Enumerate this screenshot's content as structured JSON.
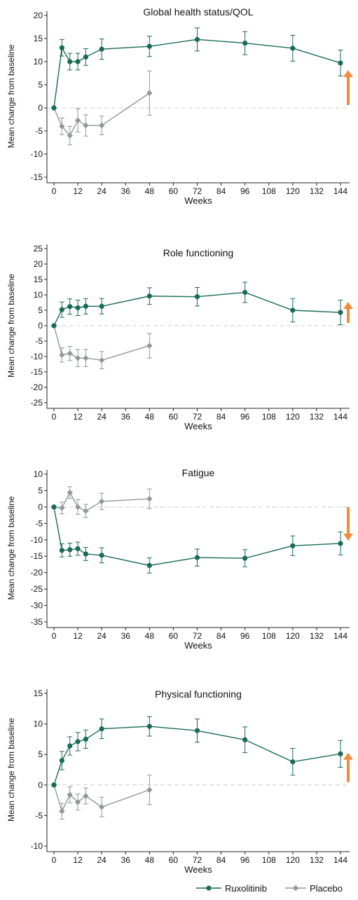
{
  "colors": {
    "ruxolitinib": "#1a6b55",
    "placebo": "#8e9a98",
    "arrow": "#f58a3a",
    "zero_line": "#cccccc",
    "axis": "#222222"
  },
  "legend": [
    {
      "label": "Ruxolitinib",
      "marker": "circle"
    },
    {
      "label": "Placebo",
      "marker": "diamond"
    }
  ],
  "chart_data": [
    {
      "type": "line",
      "title": "Global health status/QOL",
      "xlabel": "Weeks",
      "ylabel": "Mean change from baseline",
      "xticks": [
        0,
        12,
        24,
        36,
        48,
        60,
        72,
        84,
        96,
        108,
        120,
        132,
        144
      ],
      "ylim": [
        -15,
        20
      ],
      "yticks": [
        -15,
        -10,
        -5,
        0,
        5,
        10,
        15,
        20
      ],
      "arrow": "up",
      "series": [
        {
          "name": "Ruxolitinib",
          "x": [
            0,
            4,
            8,
            12,
            16,
            24,
            48,
            72,
            96,
            120,
            144
          ],
          "y": [
            0,
            13,
            10,
            10,
            11,
            12.7,
            13.3,
            14.8,
            14,
            12.9,
            9.7
          ],
          "err": [
            0,
            1.8,
            1.8,
            1.8,
            1.8,
            2.2,
            2.2,
            2.5,
            2.5,
            2.8,
            2.8
          ]
        },
        {
          "name": "Placebo",
          "x": [
            0,
            4,
            8,
            12,
            16,
            24,
            48
          ],
          "y": [
            0,
            -4,
            -6,
            -2.7,
            -3.8,
            -3.8,
            3.2
          ],
          "err": [
            0,
            1.8,
            2,
            2.5,
            2.3,
            2,
            4.8
          ]
        }
      ]
    },
    {
      "type": "line",
      "title": "Role functioning",
      "xlabel": "Weeks",
      "ylabel": "Mean change from baseline",
      "xticks": [
        0,
        12,
        24,
        36,
        48,
        60,
        72,
        84,
        96,
        108,
        120,
        132,
        144
      ],
      "ylim": [
        -25,
        25
      ],
      "yticks": [
        -25,
        -20,
        -15,
        -10,
        -5,
        0,
        5,
        10,
        15,
        20,
        25
      ],
      "arrow": "up",
      "series": [
        {
          "name": "Ruxolitinib",
          "x": [
            0,
            4,
            8,
            12,
            16,
            24,
            48,
            72,
            96,
            120,
            144
          ],
          "y": [
            0,
            5.2,
            6.2,
            5.8,
            6.3,
            6.3,
            9.6,
            9.4,
            10.8,
            5,
            4.3
          ],
          "err": [
            0,
            2.5,
            2.5,
            2.5,
            2.5,
            2.5,
            2.7,
            3,
            3.3,
            3.8,
            4
          ]
        },
        {
          "name": "Placebo",
          "x": [
            0,
            4,
            8,
            12,
            16,
            24,
            48
          ],
          "y": [
            0,
            -9.5,
            -9,
            -10.5,
            -10.5,
            -11.2,
            -6.5
          ],
          "err": [
            0,
            2.3,
            2.3,
            2.8,
            2.8,
            2.8,
            4
          ]
        }
      ]
    },
    {
      "type": "line",
      "title": "Fatigue",
      "xlabel": "Weeks",
      "ylabel": "Mean change from baseline",
      "xticks": [
        0,
        12,
        24,
        36,
        48,
        60,
        72,
        84,
        96,
        108,
        120,
        132,
        144
      ],
      "ylim": [
        -35,
        10
      ],
      "yticks": [
        -35,
        -30,
        -25,
        -20,
        -15,
        -10,
        -5,
        0,
        5,
        10
      ],
      "arrow": "down",
      "series": [
        {
          "name": "Ruxolitinib",
          "x": [
            0,
            4,
            8,
            12,
            16,
            24,
            48,
            72,
            96,
            120,
            144
          ],
          "y": [
            0,
            -13.2,
            -13,
            -12.7,
            -14.3,
            -14.7,
            -17.8,
            -15.4,
            -15.6,
            -11.8,
            -11.1
          ],
          "err": [
            0,
            2,
            2,
            2,
            2,
            2.3,
            2.3,
            2.6,
            2.6,
            3,
            3.5
          ]
        },
        {
          "name": "Placebo",
          "x": [
            0,
            4,
            8,
            12,
            16,
            24,
            48
          ],
          "y": [
            0,
            -0.3,
            4.4,
            0,
            -1.2,
            1.7,
            2.5
          ],
          "err": [
            0,
            1.8,
            1.8,
            2.2,
            2,
            2.5,
            3
          ]
        }
      ]
    },
    {
      "type": "line",
      "title": "Physical functioning",
      "xlabel": "Weeks",
      "ylabel": "Mean change from baseline",
      "xticks": [
        0,
        12,
        24,
        36,
        48,
        60,
        72,
        84,
        96,
        108,
        120,
        132,
        144
      ],
      "ylim": [
        -10,
        15
      ],
      "yticks": [
        -10,
        -5,
        0,
        5,
        10,
        15
      ],
      "arrow": "up",
      "series": [
        {
          "name": "Ruxolitinib",
          "x": [
            0,
            4,
            8,
            12,
            16,
            24,
            48,
            72,
            96,
            120,
            144
          ],
          "y": [
            0,
            4,
            6.4,
            7.1,
            7.5,
            9.2,
            9.6,
            8.9,
            7.4,
            3.8,
            5.1
          ],
          "err": [
            0,
            1.5,
            1.5,
            1.5,
            1.5,
            1.6,
            1.6,
            1.9,
            2.1,
            2.2,
            2.2
          ]
        },
        {
          "name": "Placebo",
          "x": [
            0,
            4,
            8,
            12,
            16,
            24,
            48
          ],
          "y": [
            0,
            -4.3,
            -1.6,
            -2.8,
            -1.8,
            -3.6,
            -0.8
          ],
          "err": [
            0,
            1.3,
            1.3,
            1.3,
            1.3,
            1.6,
            2.4
          ]
        }
      ]
    }
  ]
}
